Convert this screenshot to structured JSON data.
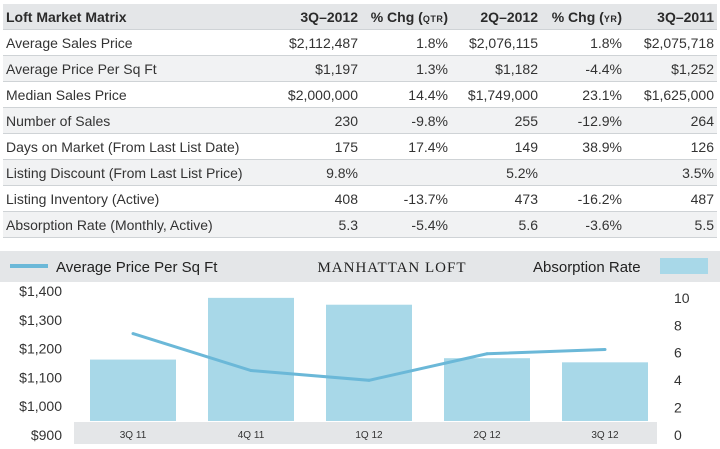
{
  "table": {
    "title": "Loft Market Matrix",
    "columns": [
      {
        "main": "3Q–2012",
        "sub": ""
      },
      {
        "main": "% Chg (",
        "sub": "QTR",
        "end": ")"
      },
      {
        "main": "2Q–2012",
        "sub": ""
      },
      {
        "main": "% Chg (",
        "sub": "YR",
        "end": ")"
      },
      {
        "main": "3Q–2011",
        "sub": ""
      }
    ],
    "rows": [
      {
        "label": "Average Sales Price",
        "cells": [
          "$2,112,487",
          "1.8%",
          "$2,076,115",
          "1.8%",
          "$2,075,718"
        ]
      },
      {
        "label": "Average Price Per Sq Ft",
        "cells": [
          "$1,197",
          "1.3%",
          "$1,182",
          "-4.4%",
          "$1,252"
        ]
      },
      {
        "label": "Median Sales Price",
        "cells": [
          "$2,000,000",
          "14.4%",
          "$1,749,000",
          "23.1%",
          "$1,625,000"
        ]
      },
      {
        "label": "Number of Sales",
        "cells": [
          "230",
          "-9.8%",
          "255",
          "-12.9%",
          "264"
        ]
      },
      {
        "label": "Days on Market (From Last List Date)",
        "cells": [
          "175",
          "17.4%",
          "149",
          "38.9%",
          "126"
        ]
      },
      {
        "label": "Listing Discount (From Last List Price)",
        "cells": [
          "9.8%",
          "",
          "5.2%",
          "",
          "3.5%"
        ]
      },
      {
        "label": "Listing Inventory (Active)",
        "cells": [
          "408",
          "-13.7%",
          "473",
          "-16.2%",
          "487"
        ]
      },
      {
        "label": "Absorption Rate (Monthly, Active)",
        "cells": [
          "5.3",
          "-5.4%",
          "5.6",
          "-3.6%",
          "5.5"
        ]
      }
    ]
  },
  "chart_data": {
    "type": "bar",
    "title": "MANHATTAN LOFT",
    "categories": [
      "3Q 11",
      "4Q 11",
      "1Q 12",
      "2Q 12",
      "3Q 12"
    ],
    "series": [
      {
        "name": "Absorption Rate",
        "kind": "bar",
        "axis": "right",
        "color": "#a8d8e8",
        "values": [
          5.5,
          10.0,
          9.5,
          5.6,
          5.3
        ]
      },
      {
        "name": "Average Price Per Sq Ft",
        "kind": "line",
        "axis": "left",
        "color": "#6bb8d8",
        "values": [
          1252,
          1124,
          1090,
          1182,
          1197
        ]
      }
    ],
    "y_left": {
      "min": 900,
      "max": 1400,
      "ticks": [
        "$1,400",
        "$1,300",
        "$1,200",
        "$1,100",
        "$1,000",
        "$900"
      ]
    },
    "y_right": {
      "min": 0,
      "max": 10.5,
      "ticks": [
        "10",
        "8",
        "6",
        "4",
        "2",
        "0"
      ],
      "tick_values": [
        10,
        8,
        6,
        4,
        2,
        0
      ]
    },
    "legend": "top",
    "grid": false
  }
}
